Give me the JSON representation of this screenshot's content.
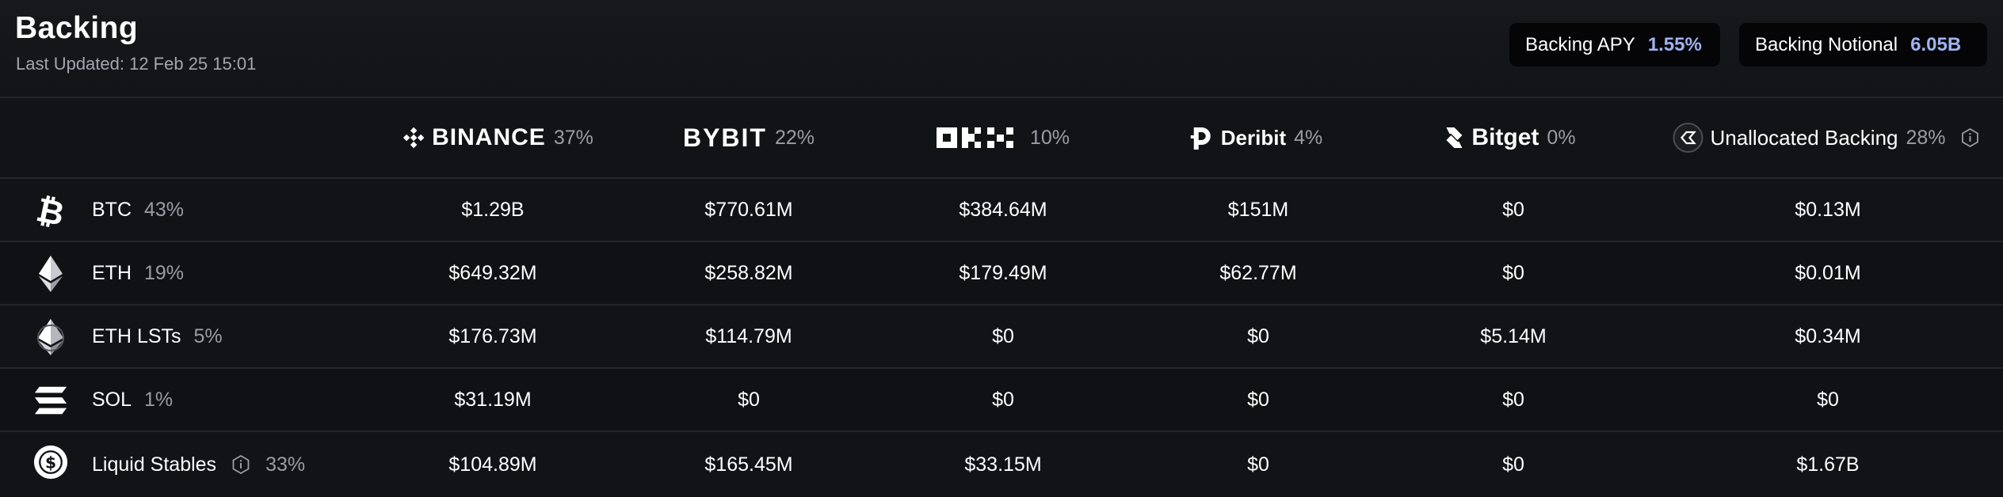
{
  "header": {
    "title": "Backing",
    "last_updated": "Last Updated: 12 Feb 25 15:01",
    "apy_label": "Backing APY",
    "apy_value": "1.55%",
    "notional_label": "Backing Notional",
    "notional_value": "6.05B"
  },
  "exchanges": [
    {
      "name": "BINANCE",
      "pct": "37%",
      "icon": "binance-icon"
    },
    {
      "name": "BYBIT",
      "pct": "22%",
      "icon": "bybit-wordmark"
    },
    {
      "name": "OKX",
      "pct": "10%",
      "icon": "okx-icon"
    },
    {
      "name": "Deribit",
      "pct": "4%",
      "icon": "deribit-icon"
    },
    {
      "name": "Bitget",
      "pct": "0%",
      "icon": "bitget-icon"
    },
    {
      "name": "Unallocated Backing",
      "pct": "28%",
      "icon": "unallocated-icon"
    }
  ],
  "rows": [
    {
      "asset": "BTC",
      "pct": "43%",
      "icon": "bitcoin-icon",
      "values": [
        "$1.29B",
        "$770.61M",
        "$384.64M",
        "$151M",
        "$0",
        "$0.13M"
      ]
    },
    {
      "asset": "ETH",
      "pct": "19%",
      "icon": "ethereum-icon",
      "values": [
        "$649.32M",
        "$258.82M",
        "$179.49M",
        "$62.77M",
        "$0",
        "$0.01M"
      ]
    },
    {
      "asset": "ETH LSTs",
      "pct": "5%",
      "icon": "eth-lst-icon",
      "values": [
        "$176.73M",
        "$114.79M",
        "$0",
        "$0",
        "$5.14M",
        "$0.34M"
      ]
    },
    {
      "asset": "SOL",
      "pct": "1%",
      "icon": "solana-icon",
      "values": [
        "$31.19M",
        "$0",
        "$0",
        "$0",
        "$0",
        "$0"
      ]
    },
    {
      "asset": "Liquid Stables",
      "pct": "33%",
      "icon": "stablecoin-icon",
      "values": [
        "$104.89M",
        "$165.45M",
        "$33.15M",
        "$0",
        "$0",
        "$1.67B"
      ]
    }
  ],
  "colors": {
    "accent": "#9fb3ef",
    "background": "#0f1013",
    "muted": "#9a9da4"
  }
}
